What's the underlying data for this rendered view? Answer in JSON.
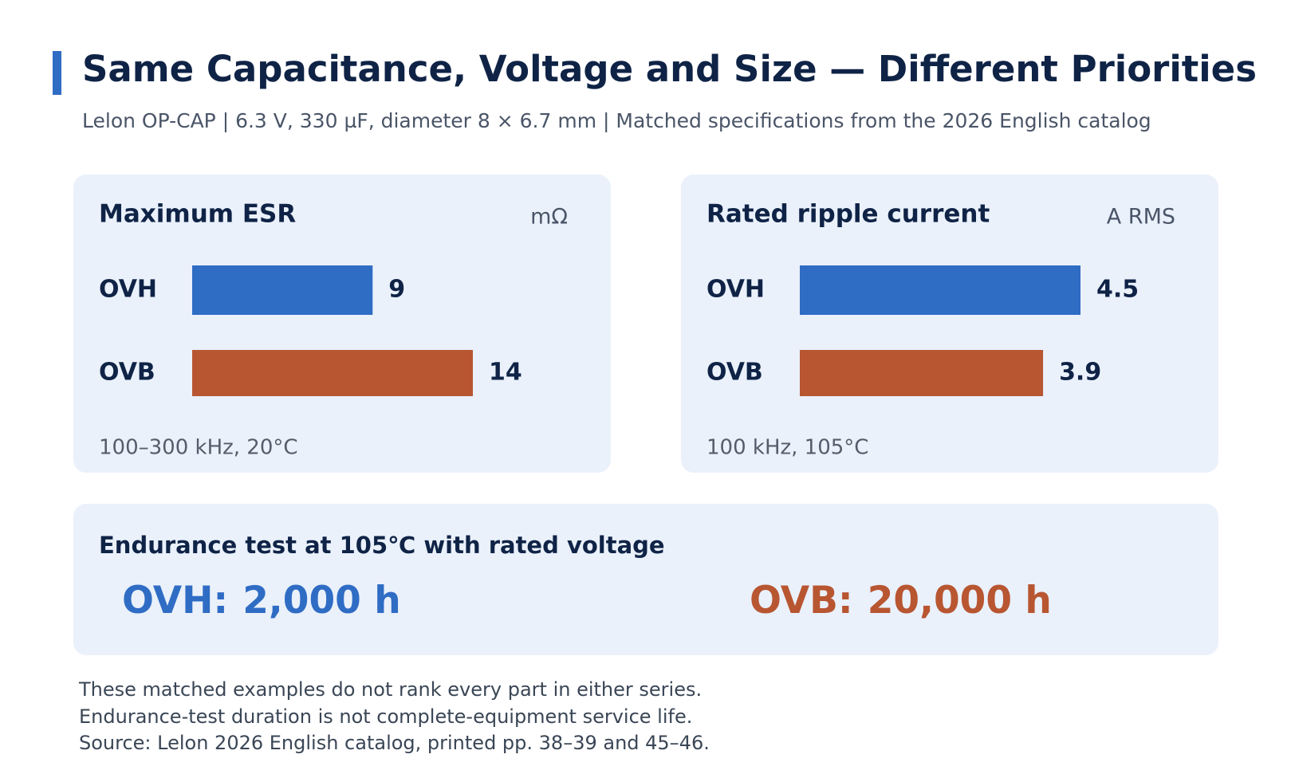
{
  "header": {
    "title": "Same Capacitance, Voltage and Size — Different Priorities",
    "subtitle": "Lelon OP-CAP | 6.3 V,  330 µF, diameter 8 × 6.7 mm | Matched specifications from the 2026 English catalog"
  },
  "chart_data": [
    {
      "type": "bar",
      "orientation": "horizontal",
      "title": "Maximum ESR",
      "unit": "mΩ",
      "categories": [
        "OVH",
        "OVB"
      ],
      "values": [
        9,
        14
      ],
      "colors": [
        "#2f6cc4",
        "#b85632"
      ],
      "note": "100–300 kHz,  20°C"
    },
    {
      "type": "bar",
      "orientation": "horizontal",
      "title": "Rated ripple current",
      "unit": "A RMS",
      "categories": [
        "OVH",
        "OVB"
      ],
      "values": [
        4.5,
        3.9
      ],
      "colors": [
        "#2f6cc4",
        "#b85632"
      ],
      "note": "100 kHz,  105°C"
    }
  ],
  "endurance": {
    "title": "Endurance test at 105℃ with rated voltage",
    "items": [
      {
        "label": "OVH:",
        "value": "2,000 h",
        "color": "#2f6cc4"
      },
      {
        "label": "OVB:",
        "value": "20,000 h",
        "color": "#b85632"
      }
    ]
  },
  "footnotes": [
    "These matched examples do not rank every part in either series.",
    "Endurance-test duration is not complete-equipment service life.",
    "Source: Lelon 2026 English catalog, printed pp. 38–39 and 45–46."
  ]
}
